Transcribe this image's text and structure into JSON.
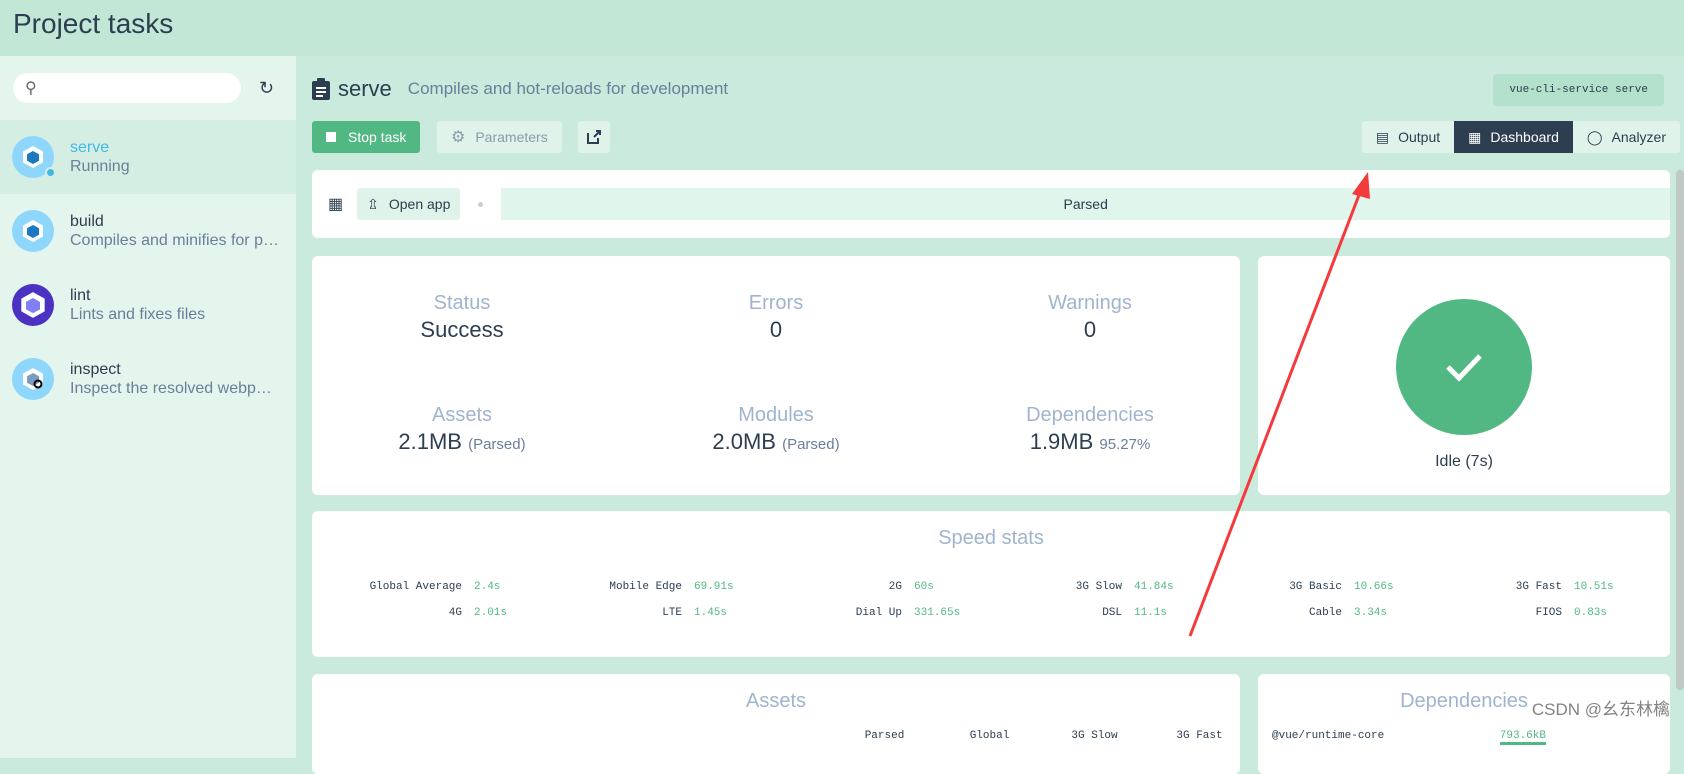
{
  "header": {
    "title": "Project tasks"
  },
  "sidebar": {
    "search_placeholder": "",
    "tasks": [
      {
        "name": "serve",
        "desc": "Running",
        "active": true
      },
      {
        "name": "build",
        "desc": "Compiles and minifies for production"
      },
      {
        "name": "lint",
        "desc": "Lints and fixes files"
      },
      {
        "name": "inspect",
        "desc": "Inspect the resolved webpack config"
      }
    ]
  },
  "task": {
    "name": "serve",
    "desc": "Compiles and hot-reloads for development",
    "command": "vue-cli-service serve"
  },
  "toolbar": {
    "stop": "Stop task",
    "params": "Parameters"
  },
  "tabs": [
    {
      "label": "Output"
    },
    {
      "label": "Dashboard"
    },
    {
      "label": "Analyzer"
    }
  ],
  "topbar": {
    "open_app": "Open app",
    "mode": "Parsed"
  },
  "stats": {
    "status": {
      "label": "Status",
      "value": "Success"
    },
    "errors": {
      "label": "Errors",
      "value": "0"
    },
    "warnings": {
      "label": "Warnings",
      "value": "0"
    },
    "assets": {
      "label": "Assets",
      "value": "2.1MB",
      "note": "(Parsed)"
    },
    "modules": {
      "label": "Modules",
      "value": "2.0MB",
      "note": "(Parsed)"
    },
    "deps": {
      "label": "Dependencies",
      "value": "1.9MB",
      "note": "95.27%"
    }
  },
  "idle": "Idle (7s)",
  "speed": {
    "title": "Speed stats",
    "items": [
      {
        "n": "Global Average",
        "s": "2.4s"
      },
      {
        "n": "Mobile Edge",
        "s": "69.91s"
      },
      {
        "n": "2G",
        "s": "60s"
      },
      {
        "n": "3G Slow",
        "s": "41.84s"
      },
      {
        "n": "3G Basic",
        "s": "10.66s"
      },
      {
        "n": "3G Fast",
        "s": "10.51s"
      },
      {
        "n": "4G",
        "s": "2.01s"
      },
      {
        "n": "LTE",
        "s": "1.45s"
      },
      {
        "n": "Dial Up",
        "s": "331.65s"
      },
      {
        "n": "DSL",
        "s": "11.1s"
      },
      {
        "n": "Cable",
        "s": "3.34s"
      },
      {
        "n": "FIOS",
        "s": "0.83s"
      }
    ]
  },
  "assets_card": {
    "title": "Assets",
    "cols": [
      "Parsed",
      "Global",
      "3G Slow",
      "3G Fast"
    ]
  },
  "deps_card": {
    "title": "Dependencies",
    "rows": [
      {
        "name": "@vue/runtime-core",
        "size": "793.6kB"
      }
    ]
  },
  "watermark": "CSDN @幺东林檎",
  "colors": {
    "accent": "#52b883",
    "dark": "#2c3e50",
    "bg": "#c9eadc"
  }
}
